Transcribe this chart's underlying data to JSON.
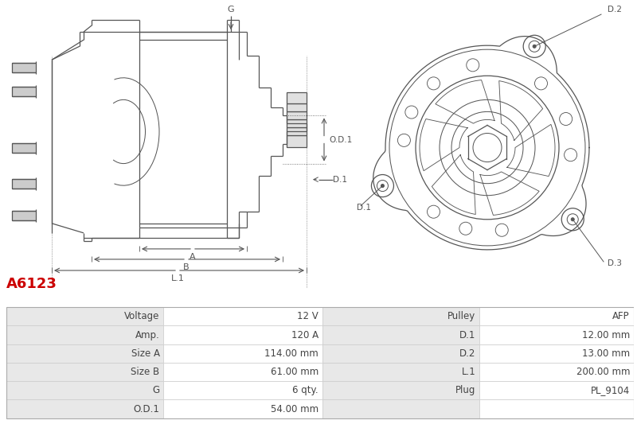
{
  "part_number": "A6123",
  "part_number_color": "#cc0000",
  "bg_color": "#ffffff",
  "table_header_bg": "#e8e8e8",
  "table_row_bg1": "#ffffff",
  "table_border_color": "#cccccc",
  "table_text_color": "#444444",
  "drawing_color": "#555555",
  "table_data": [
    [
      "Voltage",
      "12 V",
      "Pulley",
      "AFP"
    ],
    [
      "Amp.",
      "120 A",
      "D.1",
      "12.00 mm"
    ],
    [
      "Size A",
      "114.00 mm",
      "D.2",
      "13.00 mm"
    ],
    [
      "Size B",
      "61.00 mm",
      "L.1",
      "200.00 mm"
    ],
    [
      "G",
      "6 qty.",
      "Plug",
      "PL_9104"
    ],
    [
      "O.D.1",
      "54.00 mm",
      "",
      ""
    ]
  ],
  "fig_width": 8.0,
  "fig_height": 5.33,
  "dpi": 100
}
